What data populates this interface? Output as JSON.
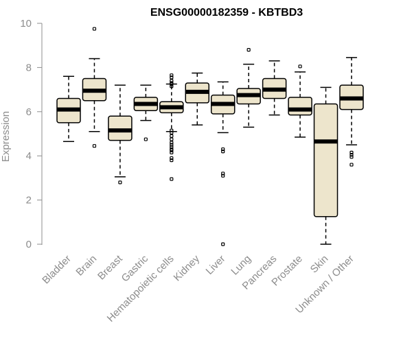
{
  "chart_data": {
    "type": "boxplot",
    "title": "ENSG00000182359 - KBTBD3",
    "xlabel": "",
    "ylabel": "Expression",
    "ylim": [
      0,
      10
    ],
    "yticks": [
      0,
      2,
      4,
      6,
      8,
      10
    ],
    "box_color": "#ede5cc",
    "categories": [
      "Bladder",
      "Brain",
      "Breast",
      "Gastric",
      "Hematopoietic cells",
      "Kidney",
      "Liver",
      "Lung",
      "Pancreas",
      "Prostate",
      "Skin",
      "Unknown / Other"
    ],
    "boxes": [
      {
        "name": "Bladder",
        "whislo": 4.65,
        "q1": 5.5,
        "med": 6.1,
        "q3": 6.6,
        "whishi": 7.6,
        "fliers": []
      },
      {
        "name": "Brain",
        "whislo": 5.1,
        "q1": 6.5,
        "med": 6.95,
        "q3": 7.5,
        "whishi": 8.4,
        "fliers": [
          9.75,
          4.45
        ]
      },
      {
        "name": "Breast",
        "whislo": 3.05,
        "q1": 4.7,
        "med": 5.15,
        "q3": 5.8,
        "whishi": 7.2,
        "fliers": [
          2.8
        ]
      },
      {
        "name": "Gastric",
        "whislo": 5.6,
        "q1": 6.05,
        "med": 6.35,
        "q3": 6.65,
        "whishi": 7.2,
        "fliers": [
          4.75
        ]
      },
      {
        "name": "Hematopoietic cells",
        "whislo": 5.1,
        "q1": 5.95,
        "med": 6.2,
        "q3": 6.45,
        "whishi": 7.25,
        "fliers": [
          7.65,
          7.55,
          7.4,
          7.3,
          7.25,
          7.15,
          5.15,
          5.05,
          4.9,
          4.75,
          4.6,
          4.5,
          4.4,
          4.3,
          4.25,
          4.15,
          3.9,
          3.8,
          2.95
        ]
      },
      {
        "name": "Kidney",
        "whislo": 5.4,
        "q1": 6.4,
        "med": 6.9,
        "q3": 7.3,
        "whishi": 7.75,
        "fliers": []
      },
      {
        "name": "Liver",
        "whislo": 5.05,
        "q1": 5.9,
        "med": 6.35,
        "q3": 6.75,
        "whishi": 7.35,
        "fliers": [
          4.3,
          4.2,
          3.2,
          3.1,
          0.0
        ]
      },
      {
        "name": "Lung",
        "whislo": 5.3,
        "q1": 6.35,
        "med": 6.75,
        "q3": 7.05,
        "whishi": 8.15,
        "fliers": [
          8.8
        ]
      },
      {
        "name": "Pancreas",
        "whislo": 5.85,
        "q1": 6.6,
        "med": 7.0,
        "q3": 7.5,
        "whishi": 8.3,
        "fliers": []
      },
      {
        "name": "Prostate",
        "whislo": 4.85,
        "q1": 5.85,
        "med": 6.1,
        "q3": 6.65,
        "whishi": 7.8,
        "fliers": [
          8.05
        ]
      },
      {
        "name": "Skin",
        "whislo": 0.0,
        "q1": 1.25,
        "med": 4.65,
        "q3": 6.35,
        "whishi": 7.1,
        "fliers": []
      },
      {
        "name": "Unknown / Other",
        "whislo": 4.5,
        "q1": 6.1,
        "med": 6.6,
        "q3": 7.2,
        "whishi": 8.45,
        "fliers": [
          4.15,
          4.05,
          3.95,
          3.6
        ]
      }
    ]
  }
}
